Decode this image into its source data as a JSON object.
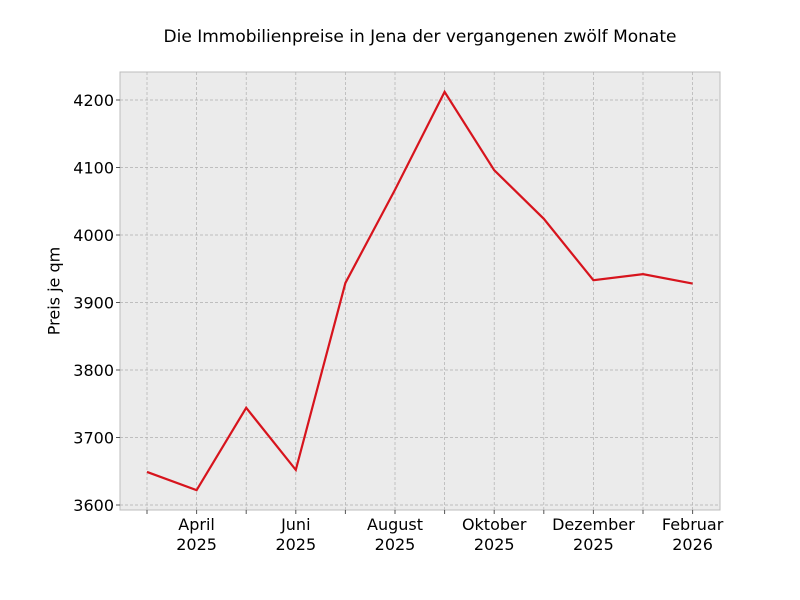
{
  "chart_data": {
    "type": "line",
    "title": "Die Immobilienpreise in Jena der vergangenen zwölf Monate",
    "xlabel": "",
    "ylabel": "Preis je qm",
    "x": [
      "2025-03",
      "2025-04",
      "2025-05",
      "2025-06",
      "2025-07",
      "2025-08",
      "2025-09",
      "2025-10",
      "2025-11",
      "2025-12",
      "2026-01",
      "2026-02"
    ],
    "series": [
      {
        "name": "Preis je qm",
        "color": "#d7141d",
        "values": [
          3649,
          3622,
          3744,
          3652,
          3929,
          4067,
          4212,
          4096,
          4024,
          3933,
          3942,
          3928
        ]
      }
    ],
    "yticks": [
      3600,
      3700,
      3800,
      3900,
      4000,
      4100,
      4200
    ],
    "xtick_labels": [
      [
        "April",
        "2025"
      ],
      [
        "Juni",
        "2025"
      ],
      [
        "August",
        "2025"
      ],
      [
        "Oktober",
        "2025"
      ],
      [
        "Dezember",
        "2025"
      ],
      [
        "Februar",
        "2026"
      ]
    ],
    "ylim": [
      3592,
      4242
    ],
    "grid": true,
    "legend": false
  }
}
